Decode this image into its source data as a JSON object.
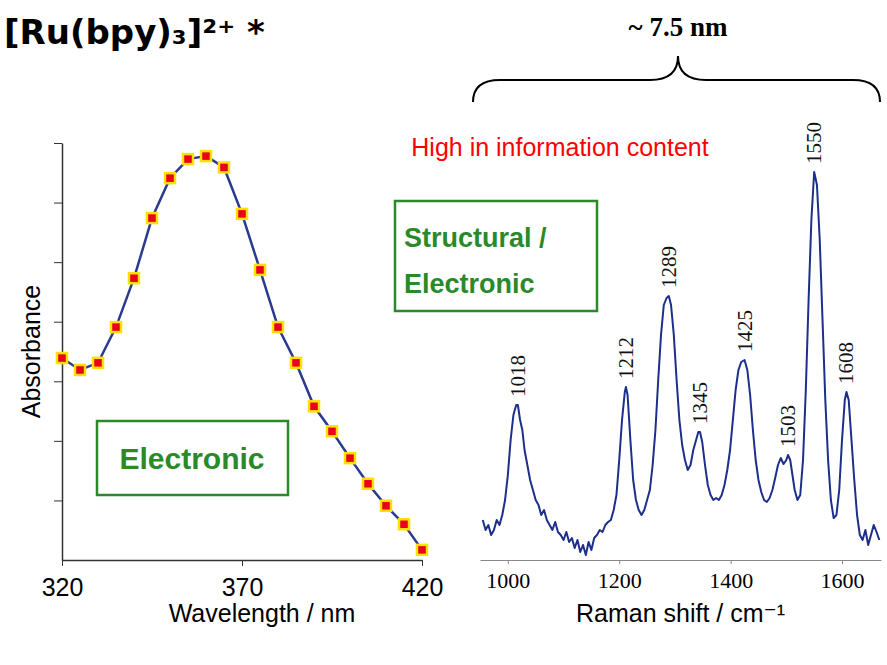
{
  "title": "[Ru(bpy)₃]²⁺ *",
  "chart_data": [
    {
      "type": "line",
      "x_label": "Wavelength  / nm",
      "y_label": "Absorbance",
      "x": [
        320,
        325,
        330,
        335,
        340,
        345,
        350,
        355,
        360,
        365,
        370,
        375,
        380,
        385,
        390,
        395,
        400,
        405,
        410,
        415,
        420
      ],
      "values": [
        3.39,
        3.19,
        3.31,
        3.91,
        4.73,
        5.74,
        6.41,
        6.73,
        6.78,
        6.59,
        5.81,
        4.87,
        3.91,
        3.31,
        2.58,
        2.16,
        1.71,
        1.28,
        0.91,
        0.6,
        0.17
      ],
      "xlim": [
        320,
        420
      ],
      "xticks": [
        320,
        370,
        420
      ],
      "ylim": [
        0,
        7
      ],
      "yticks": [
        1,
        2,
        3,
        4,
        5,
        6,
        7
      ],
      "tick_labels": "x",
      "color": "#2a3b8f",
      "marker": "square",
      "line_style": "solid",
      "annotations": [
        "Electronic"
      ]
    },
    {
      "type": "line",
      "x_label": "Raman shift / cm⁻¹",
      "x": [
        955,
        960,
        965,
        970,
        975,
        980,
        985,
        990,
        995,
        1000,
        1005,
        1010,
        1015,
        1018,
        1022,
        1026,
        1030,
        1035,
        1040,
        1045,
        1050,
        1055,
        1060,
        1065,
        1070,
        1075,
        1080,
        1085,
        1090,
        1095,
        1100,
        1105,
        1110,
        1115,
        1120,
        1125,
        1130,
        1135,
        1140,
        1145,
        1150,
        1155,
        1160,
        1165,
        1170,
        1175,
        1180,
        1185,
        1190,
        1195,
        1200,
        1205,
        1210,
        1212,
        1215,
        1220,
        1225,
        1230,
        1235,
        1240,
        1245,
        1250,
        1255,
        1260,
        1265,
        1270,
        1275,
        1280,
        1285,
        1289,
        1293,
        1298,
        1303,
        1308,
        1313,
        1318,
        1323,
        1328,
        1333,
        1338,
        1342,
        1345,
        1349,
        1354,
        1359,
        1364,
        1369,
        1374,
        1379,
        1384,
        1389,
        1394,
        1399,
        1404,
        1409,
        1414,
        1419,
        1425,
        1430,
        1435,
        1440,
        1445,
        1450,
        1455,
        1460,
        1465,
        1470,
        1475,
        1480,
        1485,
        1490,
        1495,
        1500,
        1503,
        1507,
        1511,
        1515,
        1520,
        1525,
        1530,
        1535,
        1540,
        1545,
        1550,
        1555,
        1560,
        1565,
        1570,
        1575,
        1580,
        1585,
        1590,
        1595,
        1600,
        1605,
        1608,
        1612,
        1617,
        1622,
        1627,
        1632,
        1637,
        1642,
        1647,
        1652,
        1657,
        1662,
        1667
      ],
      "values": [
        40,
        30,
        35,
        25,
        30,
        40,
        35,
        45,
        60,
        85,
        120,
        145,
        155,
        155,
        140,
        130,
        110,
        95,
        80,
        70,
        60,
        55,
        45,
        50,
        40,
        35,
        30,
        38,
        28,
        25,
        20,
        28,
        18,
        22,
        12,
        20,
        8,
        15,
        5,
        18,
        10,
        22,
        25,
        30,
        28,
        35,
        38,
        40,
        50,
        65,
        100,
        140,
        168,
        173,
        165,
        120,
        80,
        60,
        50,
        45,
        50,
        60,
        70,
        95,
        130,
        180,
        225,
        255,
        262,
        264,
        255,
        225,
        180,
        140,
        115,
        100,
        90,
        95,
        110,
        120,
        128,
        128,
        118,
        95,
        75,
        65,
        60,
        62,
        60,
        65,
        75,
        90,
        110,
        140,
        170,
        190,
        198,
        200,
        190,
        165,
        130,
        100,
        80,
        68,
        60,
        58,
        62,
        70,
        82,
        95,
        102,
        96,
        100,
        105,
        100,
        85,
        70,
        60,
        65,
        100,
        170,
        260,
        340,
        388,
        375,
        320,
        240,
        160,
        100,
        60,
        42,
        45,
        70,
        120,
        160,
        168,
        160,
        120,
        80,
        45,
        25,
        20,
        30,
        15,
        25,
        35,
        28,
        20
      ],
      "xlim": [
        950,
        1670
      ],
      "xticks": [
        1000,
        1200,
        1400,
        1600
      ],
      "ylim": [
        0,
        400
      ],
      "tick_labels": "x",
      "color": "#1c2f8a",
      "line_style": "solid",
      "peaks": [
        1018,
        1212,
        1289,
        1345,
        1425,
        1503,
        1550,
        1608
      ],
      "annotations": [
        "~ 7.5 nm",
        "High in information content",
        "Structural /",
        "Electronic"
      ]
    }
  ]
}
